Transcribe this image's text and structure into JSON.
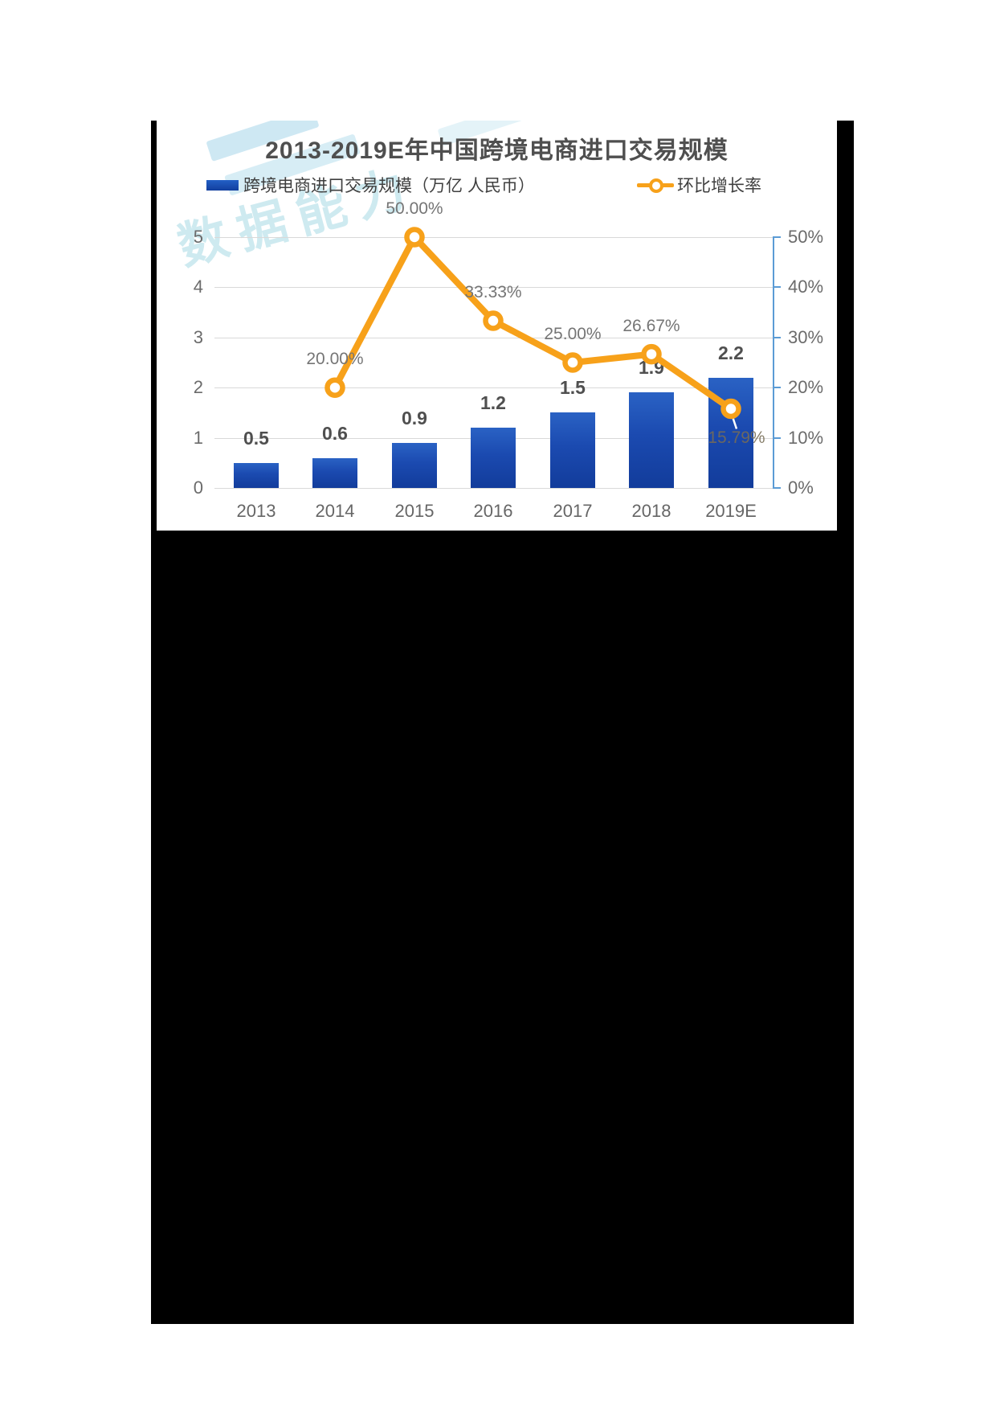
{
  "page": {
    "background_color": "#ffffff",
    "backdrop_color": "#000000"
  },
  "watermark": {
    "text": "数据能力"
  },
  "chart": {
    "title": "2013-2019E年中国跨境电商进口交易规模",
    "legend": [
      {
        "label": "跨境电商进口交易规模（万亿 人民币）",
        "marker": "bar-swatch",
        "color": "#1b4ab0"
      },
      {
        "label": "环比增长率",
        "marker": "line-ring",
        "color": "#F7A11A"
      }
    ]
  },
  "chart_data": {
    "type": "bar+line",
    "categories": [
      "2013",
      "2014",
      "2015",
      "2016",
      "2017",
      "2018",
      "2019E"
    ],
    "series": [
      {
        "name": "跨境电商进口交易规模（万亿 人民币）",
        "type": "bar",
        "axis": "left",
        "color": "#1b4ab0",
        "values": [
          0.5,
          0.6,
          0.9,
          1.2,
          1.5,
          1.9,
          2.2
        ],
        "data_labels": [
          "0.5",
          "0.6",
          "0.9",
          "1.2",
          "1.5",
          "1.9",
          "2.2"
        ]
      },
      {
        "name": "环比增长率",
        "type": "line",
        "axis": "right",
        "color": "#F7A11A",
        "values": [
          null,
          20.0,
          50.0,
          33.33,
          25.0,
          26.67,
          15.79
        ],
        "data_labels": [
          "",
          "20.00%",
          "50.00%",
          "33.33%",
          "25.00%",
          "26.67%",
          "15.79%"
        ]
      }
    ],
    "left_axis": {
      "ticks": [
        "5",
        "4",
        "3",
        "2",
        "1",
        "0"
      ],
      "range": [
        0,
        5
      ]
    },
    "right_axis": {
      "ticks": [
        "50%",
        "40%",
        "30%",
        "20%",
        "10%",
        "0%"
      ],
      "range_pct": [
        0,
        50
      ],
      "axis_color": "#5B9BD5"
    },
    "grid": true,
    "legend_position": "top"
  }
}
